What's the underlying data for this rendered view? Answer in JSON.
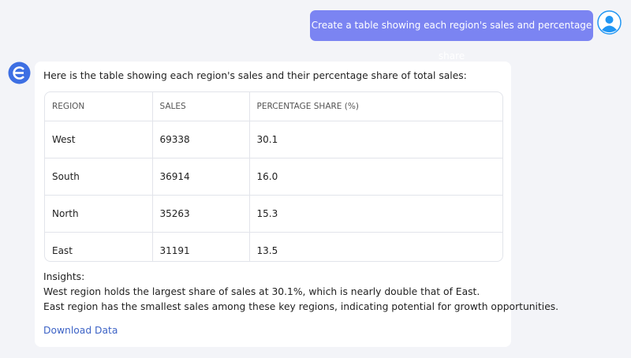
{
  "user_message": "Create a table showing each region's sales and percentage share",
  "reply": {
    "intro": "Here is the table showing each region's sales and their percentage share of total sales:",
    "table": {
      "headers": [
        "REGION",
        "SALES",
        "PERCENTAGE SHARE (%)"
      ],
      "rows": [
        [
          "West",
          "69338",
          "30.1"
        ],
        [
          "South",
          "36914",
          "16.0"
        ],
        [
          "North",
          "35263",
          "15.3"
        ],
        [
          "East",
          "31191",
          "13.5"
        ]
      ]
    },
    "insights_title": "Insights:",
    "insights": [
      "West region holds the largest share of sales at 30.1%, which is nearly double that of East.",
      "East region has the smallest sales among these key regions, indicating potential for growth opportunities."
    ],
    "download_link": "Download Data"
  }
}
